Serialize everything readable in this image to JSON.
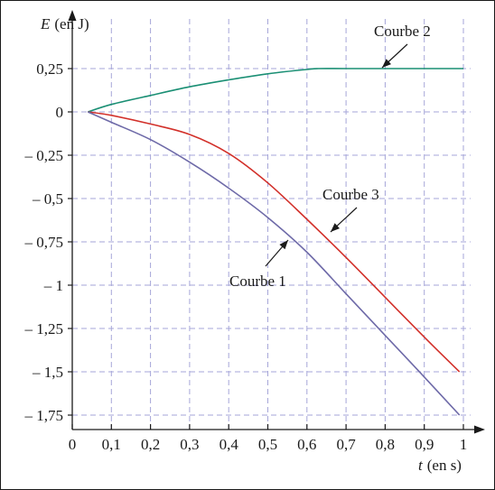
{
  "chart_data": {
    "type": "line",
    "xlabel_var": "t",
    "xlabel_unit": "(en s)",
    "ylabel_var": "E",
    "ylabel_unit": "(en J)",
    "xlim": [
      0,
      1
    ],
    "ylim": [
      -1.75,
      0.25
    ],
    "grid": true,
    "x_ticks": [
      0,
      0.1,
      0.2,
      0.3,
      0.4,
      0.5,
      0.6,
      0.7,
      0.8,
      0.9,
      1
    ],
    "x_tick_labels": [
      "0",
      "0,1",
      "0,2",
      "0,3",
      "0,4",
      "0,5",
      "0,6",
      "0,7",
      "0,8",
      "0,9",
      "1"
    ],
    "y_ticks": [
      0.25,
      0,
      -0.25,
      -0.5,
      -0.75,
      -1,
      -1.25,
      -1.5,
      -1.75
    ],
    "y_tick_labels": [
      "0,25",
      "0",
      "– 0,25",
      "– 0,5",
      "– 0,75",
      "– 1",
      "– 1,25",
      "– 1,5",
      "– 1,75"
    ],
    "series": [
      {
        "key": "c2",
        "name": "Courbe 2",
        "color": "#1a8f74",
        "x": [
          0.04,
          0.1,
          0.2,
          0.3,
          0.4,
          0.5,
          0.6,
          0.63,
          0.7,
          0.8,
          0.9,
          1.0
        ],
        "values": [
          0,
          0.043,
          0.095,
          0.145,
          0.185,
          0.22,
          0.245,
          0.25,
          0.25,
          0.25,
          0.25,
          0.25
        ]
      },
      {
        "key": "c3",
        "name": "Courbe 3",
        "color": "#d2302a",
        "x": [
          0.04,
          0.1,
          0.2,
          0.3,
          0.4,
          0.5,
          0.6,
          0.7,
          0.8,
          0.9,
          0.99
        ],
        "values": [
          0,
          -0.02,
          -0.07,
          -0.13,
          -0.24,
          -0.41,
          -0.62,
          -0.84,
          -1.07,
          -1.3,
          -1.5
        ]
      },
      {
        "key": "c1",
        "name": "Courbe 1",
        "color": "#6e6aa8",
        "x": [
          0.04,
          0.1,
          0.2,
          0.3,
          0.4,
          0.5,
          0.6,
          0.7,
          0.8,
          0.9,
          0.99
        ],
        "values": [
          0,
          -0.06,
          -0.16,
          -0.29,
          -0.44,
          -0.61,
          -0.81,
          -1.05,
          -1.29,
          -1.53,
          -1.75
        ]
      }
    ],
    "annotations": [
      {
        "key": "c2",
        "text": "Courbe 2"
      },
      {
        "key": "c3",
        "text": "Courbe 3"
      },
      {
        "key": "c1",
        "text": "Courbe 1"
      }
    ]
  }
}
